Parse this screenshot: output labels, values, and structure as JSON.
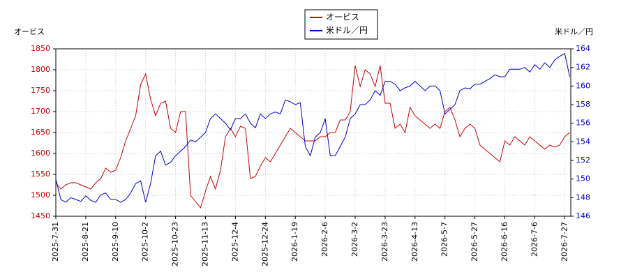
{
  "chart_data": {
    "type": "line",
    "y_label": "オービス",
    "y2_label": "米ドル／円",
    "categories": [
      "2025-7-31",
      null,
      null,
      null,
      null,
      null,
      "2025-8-21",
      null,
      null,
      null,
      null,
      null,
      "2025-9-10",
      null,
      null,
      null,
      null,
      null,
      "2025-10-2",
      null,
      null,
      null,
      null,
      null,
      "2025-10-23",
      null,
      null,
      null,
      null,
      null,
      "2025-11-13",
      null,
      null,
      null,
      null,
      null,
      "2025-12-4",
      null,
      null,
      null,
      null,
      null,
      "2025-12-24",
      null,
      null,
      null,
      null,
      null,
      "2026-1-19",
      null,
      null,
      null,
      null,
      null,
      "2026-2-6",
      null,
      null,
      null,
      null,
      null,
      "2026-3-2",
      null,
      null,
      null,
      null,
      null,
      "2026-3-23",
      null,
      null,
      null,
      null,
      null,
      "2026-4-13",
      null,
      null,
      null,
      null,
      null,
      "2026-5-7",
      null,
      null,
      null,
      null,
      null,
      "2026-5-27",
      null,
      null,
      null,
      null,
      null,
      "2026-6-16",
      null,
      null,
      null,
      null,
      null,
      "2026-7-6",
      null,
      null,
      null,
      null,
      null,
      "2026-7-27",
      null
    ],
    "series": [
      {
        "name": "オービス",
        "color": "#cc0000",
        "values": [
          1530,
          1515,
          1525,
          1530,
          1530,
          1525,
          1520,
          1515,
          1530,
          1540,
          1565,
          1555,
          1560,
          1590,
          1630,
          1660,
          1690,
          1765,
          1790,
          1730,
          1690,
          1720,
          1725,
          1660,
          1650,
          1700,
          1700,
          1500,
          1485,
          1470,
          1510,
          1545,
          1515,
          1560,
          1640,
          1660,
          1640,
          1665,
          1660,
          1540,
          1545,
          1570,
          1590,
          1580,
          1600,
          1620,
          1640,
          1660,
          1650,
          1640,
          1630,
          1630,
          1630,
          1640,
          1640,
          1650,
          1650,
          1680,
          1680,
          1700,
          1810,
          1760,
          1800,
          1790,
          1760,
          1810,
          1720,
          1720,
          1660,
          1670,
          1650,
          1710,
          1690,
          1680,
          1670,
          1660,
          1670,
          1660,
          1700,
          1710,
          1680,
          1640,
          1660,
          1670,
          1660,
          1620,
          1610,
          1600,
          1590,
          1580,
          1630,
          1620,
          1640,
          1630,
          1620,
          1640,
          1630,
          1620,
          1610,
          1620,
          1615,
          1620,
          1640,
          1650
        ]
      },
      {
        "name": "米ドル／円",
        "color": "#0000cc",
        "axis": "y2",
        "values": [
          150,
          147.8,
          147.5,
          148,
          147.8,
          147.6,
          148.2,
          147.7,
          147.5,
          148.3,
          148.5,
          147.8,
          147.8,
          147.5,
          147.8,
          148.5,
          149.5,
          149.8,
          147.5,
          149.5,
          152.5,
          153,
          151.5,
          151.8,
          152.5,
          153,
          153.5,
          154.2,
          154,
          154.5,
          155,
          156.5,
          157,
          156.5,
          156,
          155.3,
          156.5,
          156.5,
          157,
          156,
          155.5,
          157,
          156.5,
          157,
          157.2,
          157,
          158.5,
          158.3,
          158,
          158.2,
          153.5,
          152.5,
          154.5,
          155,
          156.5,
          152.5,
          152.5,
          153.5,
          154.5,
          156.5,
          157,
          158,
          158,
          158.5,
          159.5,
          159,
          160.5,
          160.5,
          160.2,
          159.5,
          159.8,
          160,
          160.5,
          160,
          159.5,
          160,
          160,
          159.5,
          157,
          157.5,
          158,
          159.5,
          159.8,
          159.7,
          160.2,
          160.2,
          160.5,
          160.8,
          161.2,
          161,
          161,
          161.8,
          161.8,
          161.8,
          162,
          161.5,
          162.3,
          161.8,
          162.5,
          162,
          162.8,
          163.2,
          163.5,
          161
        ]
      }
    ],
    "ylim": [
      1450,
      1850
    ],
    "yticks": [
      1450,
      1500,
      1550,
      1600,
      1650,
      1700,
      1750,
      1800,
      1850
    ],
    "y2lim": [
      146,
      164
    ],
    "y2ticks": [
      146,
      148,
      150,
      152,
      154,
      156,
      158,
      160,
      162,
      164
    ],
    "grid": true
  }
}
